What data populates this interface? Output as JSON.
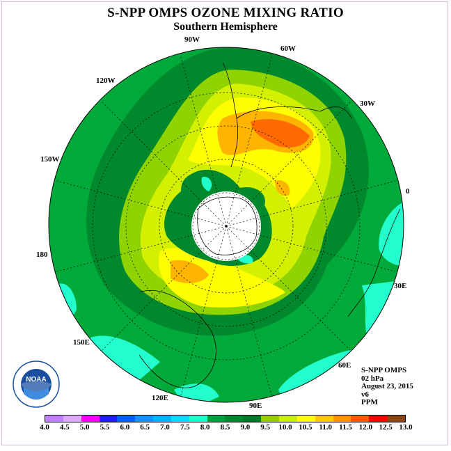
{
  "title": "S-NPP OMPS OZONE MIXING RATIO",
  "subtitle": "Southern Hemisphere",
  "longitude_labels": [
    "90W",
    "60W",
    "30W",
    "0",
    "30E",
    "60E",
    "90E",
    "120E",
    "150E",
    "180",
    "150W",
    "120W"
  ],
  "info": {
    "line1": "S-NPP OMPS",
    "line2": "02 hPa",
    "line3": "August 23, 2015",
    "line4": "v6",
    "line5": "PPM"
  },
  "logo_text": "NOAA",
  "colorbar": {
    "labels": [
      "4.0",
      "4.5",
      "5.0",
      "5.5",
      "6.0",
      "6.5",
      "7.0",
      "7.5",
      "8.0",
      "8.5",
      "9.0",
      "9.5",
      "10.0",
      "10.5",
      "11.0",
      "11.5",
      "12.0",
      "12.5",
      "13.0"
    ],
    "colors": [
      "#c080ff",
      "#e0a8ff",
      "#ff00ff",
      "#2020ff",
      "#0060ff",
      "#1890ff",
      "#00b4ff",
      "#00e0ff",
      "#22ffcc",
      "#00a040",
      "#008830",
      "#007a28",
      "#9acd00",
      "#c8f000",
      "#ffff00",
      "#ffc800",
      "#ff9600",
      "#ff5a00",
      "#ff0000",
      "#8b4513"
    ]
  },
  "map_colors": {
    "ocean_background": "#00aa3a",
    "dark_ring": "#00882d",
    "light_green": "#8fd400",
    "yellow_green": "#d2f000",
    "yellow": "#ffff00",
    "orange": "#ffb400",
    "dark_orange": "#ff6a00",
    "cyan": "#22ffcc",
    "pole_cap": "#ffffff"
  }
}
